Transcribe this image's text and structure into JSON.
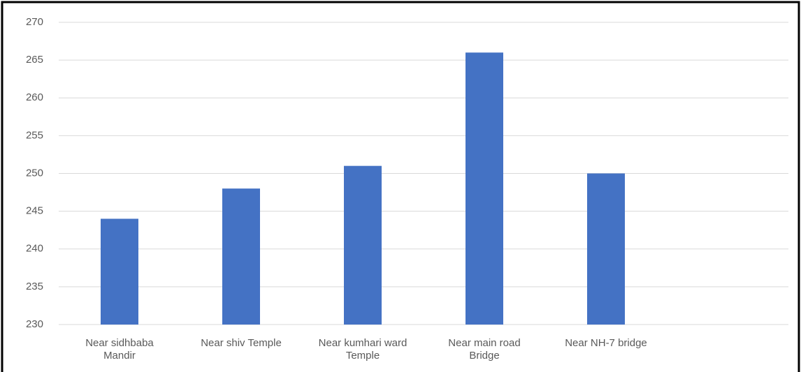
{
  "chart_data": {
    "type": "bar",
    "categories": [
      "Near sidhbaba Mandir",
      "Near shiv Temple",
      "Near kumhari ward Temple",
      "Near main road Bridge",
      "Near NH-7 bridge",
      null
    ],
    "values": [
      244,
      248,
      251,
      266,
      250,
      null
    ],
    "color": "#4472c4",
    "ylim": [
      230,
      270
    ],
    "yticks": [
      230,
      235,
      240,
      245,
      250,
      255,
      260,
      265,
      270
    ],
    "grid": true
  }
}
